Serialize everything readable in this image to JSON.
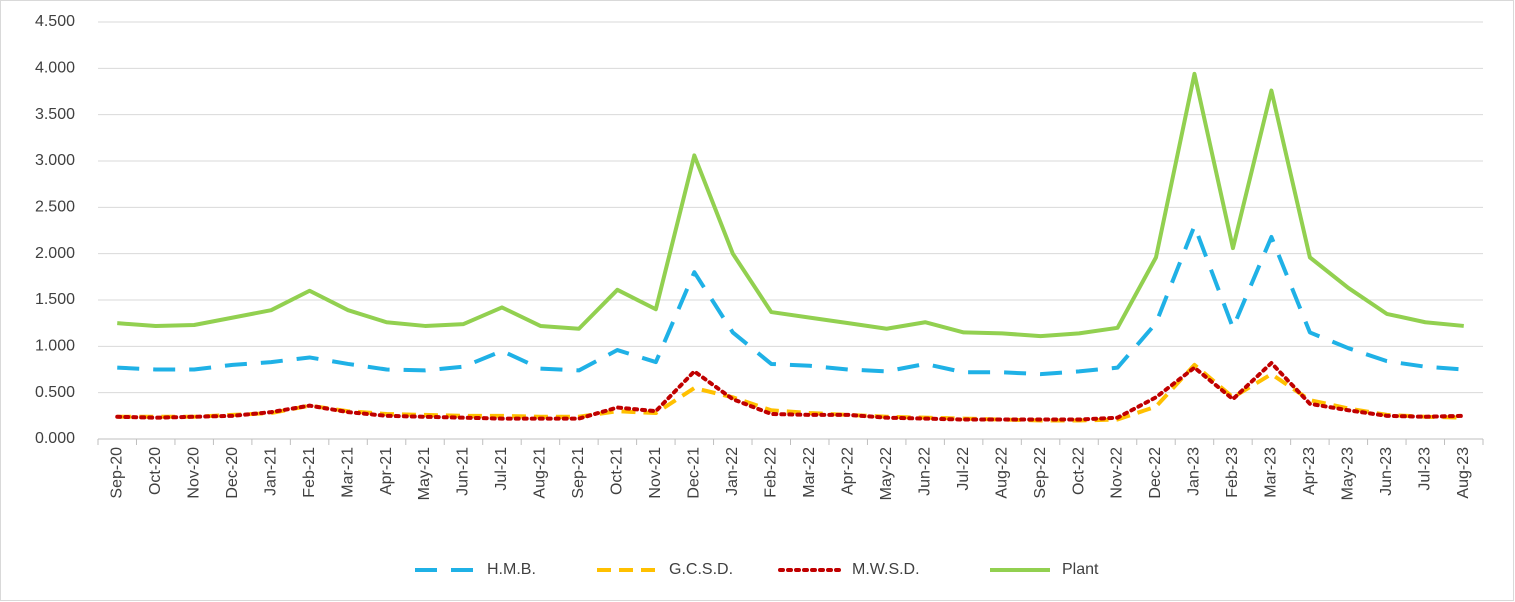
{
  "chart_data": {
    "type": "line",
    "categories": [
      "Sep-20",
      "Oct-20",
      "Nov-20",
      "Dec-20",
      "Jan-21",
      "Feb-21",
      "Mar-21",
      "Apr-21",
      "May-21",
      "Jun-21",
      "Jul-21",
      "Aug-21",
      "Sep-21",
      "Oct-21",
      "Nov-21",
      "Dec-21",
      "Jan-22",
      "Feb-22",
      "Mar-22",
      "Apr-22",
      "May-22",
      "Jun-22",
      "Jul-22",
      "Aug-22",
      "Sep-22",
      "Oct-22",
      "Nov-22",
      "Dec-22",
      "Jan-23",
      "Feb-23",
      "Mar-23",
      "Apr-23",
      "May-23",
      "Jun-23",
      "Jul-23",
      "Aug-23"
    ],
    "series": [
      {
        "name": "H.M.B.",
        "color": "#1fb1e6",
        "dash": "long-dash",
        "values": [
          0.77,
          0.75,
          0.75,
          0.8,
          0.83,
          0.88,
          0.81,
          0.75,
          0.74,
          0.78,
          0.95,
          0.76,
          0.74,
          0.96,
          0.83,
          1.8,
          1.15,
          0.81,
          0.79,
          0.75,
          0.73,
          0.81,
          0.72,
          0.72,
          0.7,
          0.73,
          0.77,
          1.25,
          2.3,
          1.2,
          2.18,
          1.15,
          0.98,
          0.84,
          0.78,
          0.75
        ]
      },
      {
        "name": "G.C.S.D.",
        "color": "#ffc000",
        "dash": "dash",
        "values": [
          0.24,
          0.24,
          0.24,
          0.26,
          0.28,
          0.36,
          0.3,
          0.27,
          0.26,
          0.25,
          0.25,
          0.24,
          0.24,
          0.3,
          0.28,
          0.55,
          0.45,
          0.31,
          0.28,
          0.26,
          0.24,
          0.23,
          0.22,
          0.21,
          0.2,
          0.2,
          0.21,
          0.35,
          0.8,
          0.45,
          0.7,
          0.42,
          0.33,
          0.26,
          0.24,
          0.23
        ]
      },
      {
        "name": "M.W.S.D.",
        "color": "#c00000",
        "dash": "dot",
        "values": [
          0.24,
          0.23,
          0.24,
          0.25,
          0.29,
          0.36,
          0.29,
          0.25,
          0.24,
          0.23,
          0.22,
          0.22,
          0.22,
          0.34,
          0.3,
          0.73,
          0.43,
          0.27,
          0.26,
          0.26,
          0.23,
          0.22,
          0.21,
          0.21,
          0.21,
          0.21,
          0.23,
          0.45,
          0.77,
          0.43,
          0.82,
          0.38,
          0.31,
          0.25,
          0.24,
          0.25
        ]
      },
      {
        "name": "Plant",
        "color": "#92d050",
        "dash": "solid",
        "values": [
          1.25,
          1.22,
          1.23,
          1.31,
          1.39,
          1.6,
          1.39,
          1.26,
          1.22,
          1.24,
          1.42,
          1.22,
          1.19,
          1.61,
          1.4,
          3.06,
          2.0,
          1.37,
          1.31,
          1.25,
          1.19,
          1.26,
          1.15,
          1.14,
          1.11,
          1.14,
          1.2,
          1.96,
          3.94,
          2.06,
          3.76,
          1.96,
          1.63,
          1.35,
          1.26,
          1.22
        ]
      }
    ],
    "ylim": [
      0,
      4.5
    ],
    "yticks": [
      {
        "value": 0,
        "label": "0.000"
      },
      {
        "value": 0.5,
        "label": "0.500"
      },
      {
        "value": 1,
        "label": "1.000"
      },
      {
        "value": 1.5,
        "label": "1.500"
      },
      {
        "value": 2,
        "label": "2.000"
      },
      {
        "value": 2.5,
        "label": "2.500"
      },
      {
        "value": 3,
        "label": "3.000"
      },
      {
        "value": 3.5,
        "label": "3.500"
      },
      {
        "value": 4,
        "label": "4.000"
      },
      {
        "value": 4.5,
        "label": "4.500"
      }
    ],
    "grid": true,
    "legend": "bottom"
  }
}
